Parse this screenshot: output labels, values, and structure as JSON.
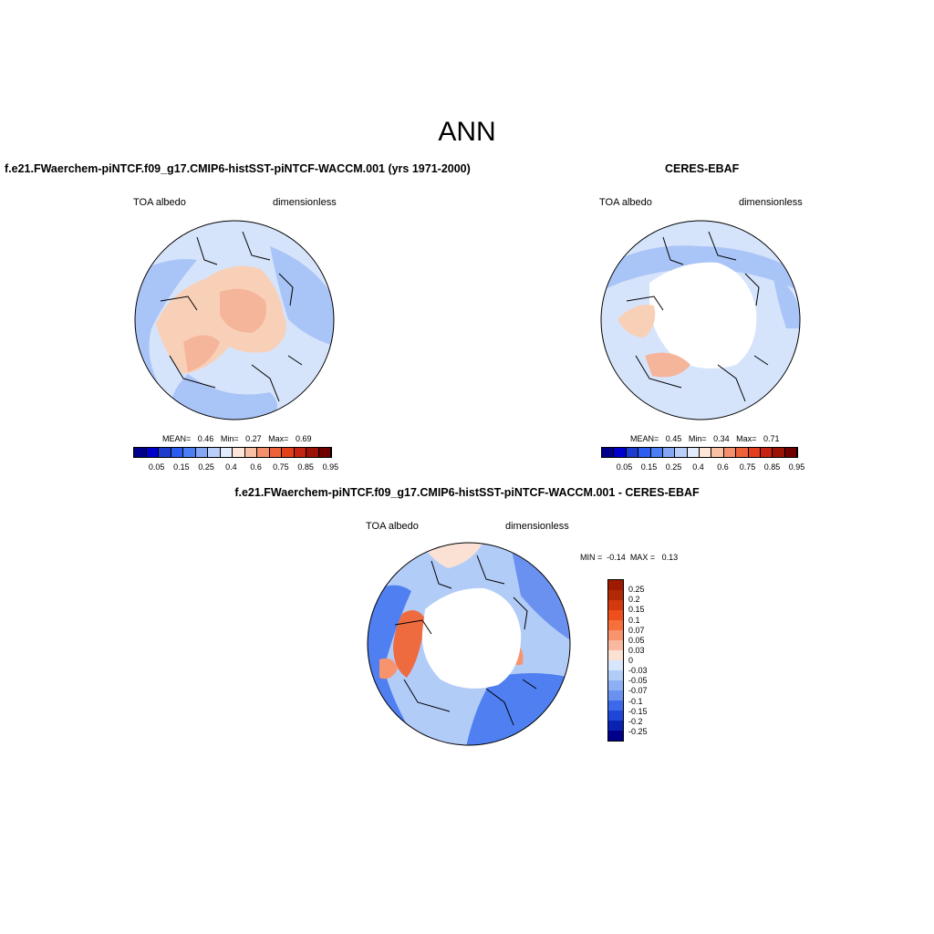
{
  "main_title": "ANN",
  "panels": [
    {
      "title": "f.e21.FWaerchem-piNTCF.f09_g17.CMIP6-histSST-piNTCF-WACCM.001 (yrs 1971-2000)",
      "left_label": "TOA albedo",
      "right_label": "dimensionless",
      "stats": {
        "mean_label": "MEAN=",
        "mean": "0.46",
        "min_label": "Min=",
        "min": "0.27",
        "max_label": "Max=",
        "max": "0.69"
      }
    },
    {
      "title": "CERES-EBAF",
      "left_label": "TOA albedo",
      "right_label": "dimensionless",
      "stats": {
        "mean_label": "MEAN=",
        "mean": "0.45",
        "min_label": "Min=",
        "min": "0.34",
        "max_label": "Max=",
        "max": "0.71"
      }
    },
    {
      "title": "f.e21.FWaerchem-piNTCF.f09_g17.CMIP6-histSST-piNTCF-WACCM.001 - CERES-EBAF",
      "left_label": "TOA albedo",
      "right_label": "dimensionless",
      "stats": {
        "min_label": "MIN =",
        "min": "-0.14",
        "max_label": "MAX =",
        "max": "0.13"
      }
    }
  ],
  "colorbar_main": {
    "colors": [
      "#00008b",
      "#0000cd",
      "#1e3ccd",
      "#2c5cf0",
      "#4a7ef2",
      "#84a6f5",
      "#b9cff8",
      "#e3ecfc",
      "#fde6d8",
      "#f9c0a6",
      "#f48f6d",
      "#ee6239",
      "#e2401b",
      "#c52412",
      "#9a1306",
      "#700000"
    ],
    "labels": [
      "0.05",
      "0.15",
      "0.25",
      "0.4",
      "0.6",
      "0.75",
      "0.85",
      "0.95"
    ]
  },
  "colorbar_diff": {
    "colors": [
      "#a01a00",
      "#b22a05",
      "#d4380f",
      "#ef4e1d",
      "#f76f3d",
      "#f7946d",
      "#f8b9a0",
      "#fbe1d4",
      "#d8e6fb",
      "#b2ccf8",
      "#8eaff4",
      "#6b91f0",
      "#3e68ea",
      "#2046d8",
      "#0a22b0",
      "#00008b"
    ],
    "labels": [
      "0.25",
      "0.2",
      "0.15",
      "0.1",
      "0.07",
      "0.05",
      "0.03",
      "0",
      "-0.03",
      "-0.05",
      "-0.07",
      "-0.1",
      "-0.15",
      "-0.2",
      "-0.25"
    ]
  },
  "map_colors": {
    "ocean_light": "#d6e4fb",
    "ocean_mid": "#a9c4f6",
    "ocean_dark": "#6d97ef",
    "land_warm": "#f8d0b7",
    "land_warmer": "#f5b59a",
    "white": "#ffffff",
    "diff_blue": "#4f7ff0",
    "diff_deep": "#2c5cf0",
    "diff_red": "#ee6a3f"
  }
}
